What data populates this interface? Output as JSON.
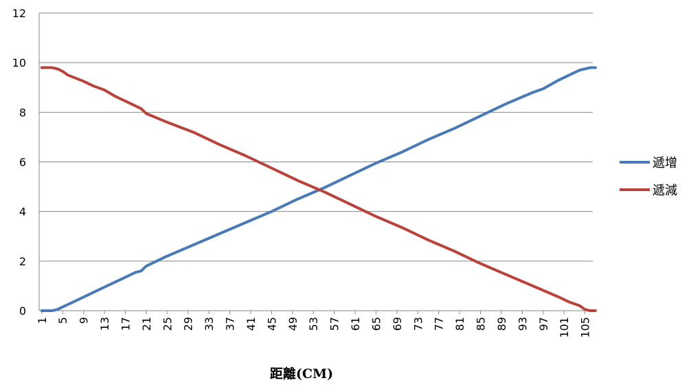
{
  "chart_data": {
    "type": "line",
    "title": "",
    "xlabel": "距離(CM)",
    "ylabel": "",
    "ylim": [
      0,
      12
    ],
    "yticks": [
      0,
      2,
      4,
      6,
      8,
      10,
      12
    ],
    "x_count": 106,
    "x_tick_labels": [
      "1",
      "5",
      "9",
      "13",
      "17",
      "21",
      "25",
      "29",
      "33",
      "37",
      "41",
      "45",
      "49",
      "53",
      "57",
      "61",
      "65",
      "69",
      "73",
      "77",
      "81",
      "85",
      "89",
      "93",
      "97",
      "101",
      "105"
    ],
    "grid": "horizontal",
    "legend_position": "right",
    "series": [
      {
        "name": "遞增",
        "color": "#4a7ab5",
        "points": [
          [
            1,
            0
          ],
          [
            3,
            0
          ],
          [
            4,
            0.05
          ],
          [
            5,
            0.15
          ],
          [
            7,
            0.35
          ],
          [
            9,
            0.55
          ],
          [
            12,
            0.85
          ],
          [
            14,
            1.05
          ],
          [
            16,
            1.25
          ],
          [
            19,
            1.55
          ],
          [
            20,
            1.6
          ],
          [
            21,
            1.8
          ],
          [
            23,
            2.0
          ],
          [
            25,
            2.2
          ],
          [
            30,
            2.65
          ],
          [
            35,
            3.1
          ],
          [
            40,
            3.55
          ],
          [
            45,
            4.0
          ],
          [
            50,
            4.5
          ],
          [
            55,
            4.95
          ],
          [
            60,
            5.45
          ],
          [
            65,
            5.95
          ],
          [
            70,
            6.4
          ],
          [
            75,
            6.9
          ],
          [
            80,
            7.35
          ],
          [
            85,
            7.85
          ],
          [
            90,
            8.35
          ],
          [
            95,
            8.8
          ],
          [
            97,
            8.95
          ],
          [
            100,
            9.3
          ],
          [
            103,
            9.6
          ],
          [
            104,
            9.7
          ],
          [
            106,
            9.8
          ],
          [
            107,
            9.8
          ]
        ]
      },
      {
        "name": "遞減",
        "color": "#b8423c",
        "points": [
          [
            1,
            9.8
          ],
          [
            3,
            9.8
          ],
          [
            4,
            9.75
          ],
          [
            5,
            9.65
          ],
          [
            6,
            9.5
          ],
          [
            9,
            9.25
          ],
          [
            11,
            9.05
          ],
          [
            13,
            8.9
          ],
          [
            15,
            8.65
          ],
          [
            17,
            8.45
          ],
          [
            20,
            8.15
          ],
          [
            21,
            7.95
          ],
          [
            25,
            7.6
          ],
          [
            30,
            7.2
          ],
          [
            35,
            6.7
          ],
          [
            40,
            6.25
          ],
          [
            45,
            5.75
          ],
          [
            50,
            5.25
          ],
          [
            55,
            4.8
          ],
          [
            60,
            4.3
          ],
          [
            65,
            3.8
          ],
          [
            70,
            3.35
          ],
          [
            75,
            2.85
          ],
          [
            80,
            2.4
          ],
          [
            85,
            1.9
          ],
          [
            90,
            1.45
          ],
          [
            95,
            1.0
          ],
          [
            100,
            0.55
          ],
          [
            102,
            0.35
          ],
          [
            104,
            0.2
          ],
          [
            105,
            0.05
          ],
          [
            106,
            0
          ],
          [
            107,
            0
          ]
        ]
      }
    ]
  }
}
